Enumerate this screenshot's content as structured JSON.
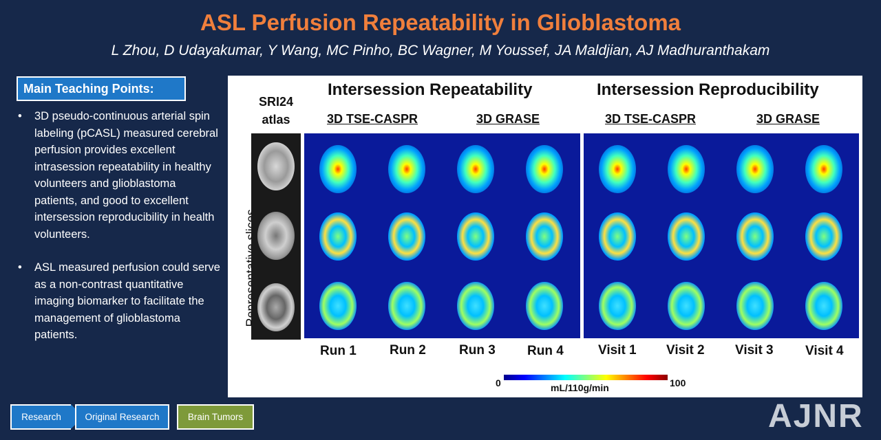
{
  "header": {
    "title": "ASL Perfusion Repeatability in Glioblastoma",
    "authors": "L Zhou, D Udayakumar, Y Wang, MC Pinho, BC Wagner, M Youssef, JA Maldjian, AJ Madhuranthakam"
  },
  "teaching": {
    "header": "Main Teaching Points:",
    "bullet": "•",
    "points": [
      "3D pseudo-continuous arterial spin labeling (pCASL) measured cerebral perfusion provides excellent intrasession repeatability in healthy volunteers and glioblastoma patients, and good to excellent intersession reproducibility in health volunteers.",
      "ASL measured perfusion could serve as a non-contrast quantitative imaging biomarker to facilitate the management of glioblastoma patients."
    ]
  },
  "figure": {
    "atlas_label_1": "SRI24",
    "atlas_label_2": "atlas",
    "y_label": "Representative slices",
    "left_title": "Intersession Repeatability",
    "right_title": "Intersession Reproducibility",
    "left_sub_1": "3D TSE-CASPR",
    "left_sub_2": "3D GRASE",
    "right_sub_1": "3D TSE-CASPR",
    "right_sub_2": "3D GRASE",
    "runs": [
      "Run 1",
      "Run 2",
      "Run 3",
      "Run 4"
    ],
    "visits": [
      "Visit 1",
      "Visit 2",
      "Visit 3",
      "Visit 4"
    ],
    "colorbar": {
      "min": "0",
      "max": "100",
      "unit": "mL/110g/min"
    }
  },
  "tags": {
    "research": "Research",
    "original": "Original Research",
    "topic": "Brain Tumors"
  },
  "logo": "AJNR",
  "colors": {
    "background": "#16284a",
    "title": "#f07f3c",
    "tag_blue": "#1f78c8",
    "tag_green": "#7e9a3a",
    "panel_blue": "#0a1a9a"
  }
}
